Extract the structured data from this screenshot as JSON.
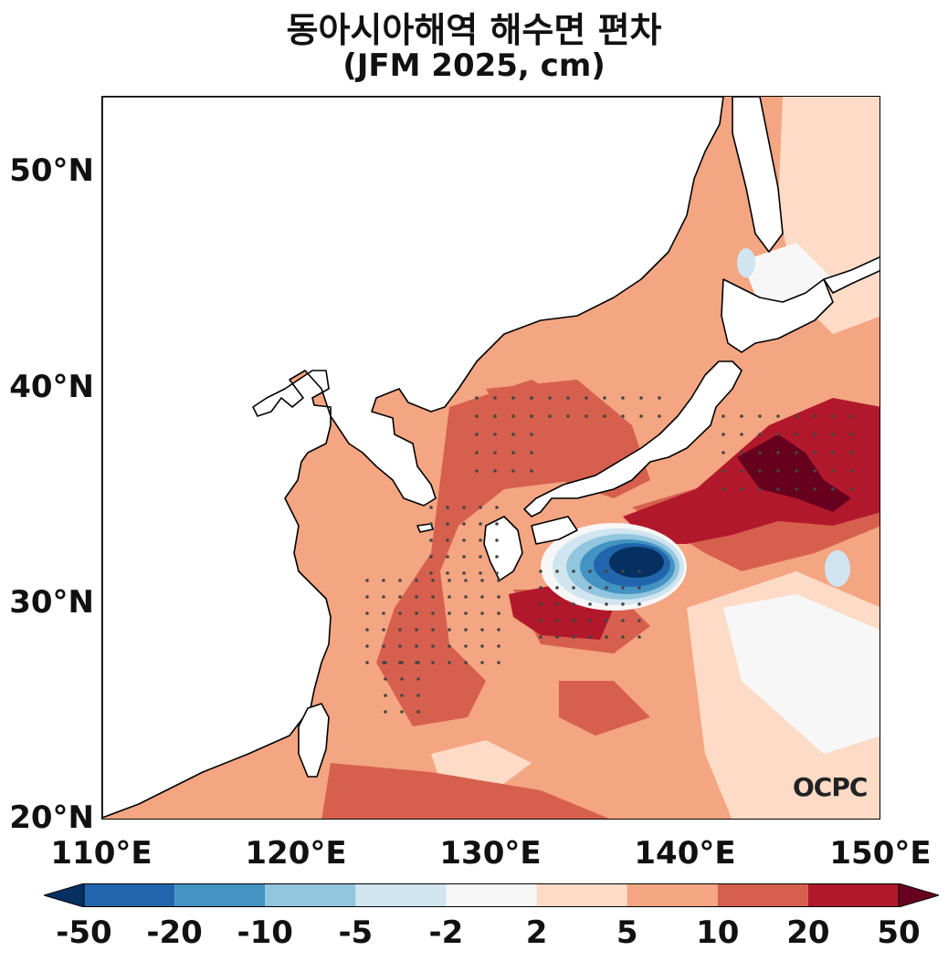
{
  "title": {
    "line1": "동아시아해역 해수면 편차",
    "line2": "(JFM 2025, cm)"
  },
  "axes": {
    "y_ticks": [
      "50°N",
      "40°N",
      "30°N",
      "20°N"
    ],
    "x_ticks": [
      "110°E",
      "120°E",
      "130°E",
      "140°E",
      "150°E"
    ],
    "lon_range": [
      110,
      150
    ],
    "lat_range": [
      20,
      53.5
    ]
  },
  "logo": "OCPC",
  "colorbar": {
    "labels": [
      "-50",
      "-20",
      "-10",
      "-5",
      "-2",
      "2",
      "5",
      "10",
      "20",
      "50"
    ],
    "colors": [
      "#053061",
      "#2166ac",
      "#4393c3",
      "#92c5de",
      "#d1e5f0",
      "#f7f7f7",
      "#fddbc7",
      "#f4a582",
      "#d6604d",
      "#b2182b",
      "#67001f"
    ],
    "extend": "both"
  },
  "colors": {
    "land": "#ffffff",
    "coast": "#000000",
    "stipple": "#444444"
  }
}
